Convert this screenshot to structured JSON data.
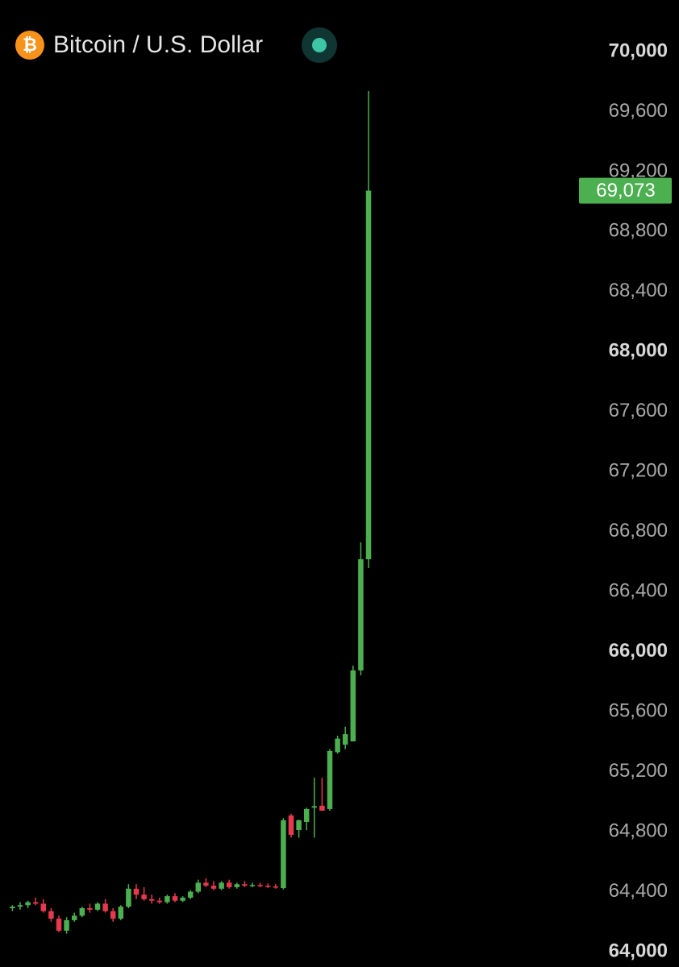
{
  "chart_data": {
    "type": "candlestick",
    "title": "Bitcoin / U.S. Dollar",
    "symbol_icon": "₿",
    "up_color": "#4caf50",
    "down_color": "#e5394d",
    "open": [
      64290,
      64300,
      64310,
      64330,
      64320,
      64270,
      64220,
      64140,
      64210,
      64240,
      64290,
      64280,
      64320,
      64270,
      64220,
      64300,
      64420,
      64380,
      64350,
      64340,
      64330,
      64370,
      64340,
      64360,
      64400,
      64460,
      64440,
      64420,
      64460,
      64430,
      64450,
      64440,
      64445,
      64440,
      64435,
      64424,
      64908,
      64811,
      64865,
      64960,
      64973,
      64951,
      65330,
      65380,
      65402,
      65875,
      66616
    ],
    "high": [
      64310,
      64330,
      64340,
      64360,
      64350,
      64290,
      64240,
      64230,
      64260,
      64300,
      64320,
      64330,
      64350,
      64290,
      64310,
      64450,
      64450,
      64430,
      64380,
      64360,
      64380,
      64390,
      64370,
      64410,
      64480,
      64490,
      64470,
      64470,
      64480,
      64460,
      64470,
      64460,
      64460,
      64455,
      64450,
      64890,
      64920,
      64880,
      64960,
      65160,
      65160,
      65350,
      65440,
      65500,
      65907,
      66729,
      69737
    ],
    "low": [
      64270,
      64280,
      64290,
      64310,
      64260,
      64200,
      64130,
      64120,
      64200,
      64230,
      64260,
      64270,
      64260,
      64200,
      64210,
      64290,
      64350,
      64340,
      64320,
      64320,
      64320,
      64330,
      64330,
      64350,
      64390,
      64430,
      64410,
      64410,
      64420,
      64420,
      64430,
      64430,
      64430,
      64425,
      64420,
      64415,
      64760,
      64760,
      64810,
      64760,
      64940,
      64940,
      65320,
      65350,
      65402,
      65842,
      66557
    ],
    "close": [
      64300,
      64310,
      64330,
      64320,
      64270,
      64220,
      64140,
      64210,
      64240,
      64290,
      64280,
      64320,
      64270,
      64220,
      64300,
      64420,
      64380,
      64350,
      64340,
      64330,
      64370,
      64340,
      64360,
      64400,
      64460,
      64440,
      64420,
      64460,
      64430,
      64450,
      64440,
      64445,
      64440,
      64435,
      64430,
      64876,
      64779,
      64876,
      64951,
      64970,
      64940,
      65338,
      65420,
      65450,
      65875,
      66616,
      69073
    ],
    "last_price": {
      "value": 69073,
      "label": "69,073"
    },
    "ylim": [
      64000,
      70000
    ],
    "yticks": [
      {
        "value": 64000,
        "label": "64,000"
      },
      {
        "value": 64400,
        "label": "64,400"
      },
      {
        "value": 64800,
        "label": "64,800"
      },
      {
        "value": 65200,
        "label": "65,200"
      },
      {
        "value": 65600,
        "label": "65,600"
      },
      {
        "value": 66000,
        "label": "66,000"
      },
      {
        "value": 66400,
        "label": "66,400"
      },
      {
        "value": 66800,
        "label": "66,800"
      },
      {
        "value": 67200,
        "label": "67,200"
      },
      {
        "value": 67600,
        "label": "67,600"
      },
      {
        "value": 68000,
        "label": "68,000"
      },
      {
        "value": 68400,
        "label": "68,400"
      },
      {
        "value": 68800,
        "label": "68,800"
      },
      {
        "value": 69200,
        "label": "69,200"
      },
      {
        "value": 69600,
        "label": "69,600"
      },
      {
        "value": 70000,
        "label": "70,000"
      }
    ],
    "bold_ticks": [
      64000,
      66000,
      68000,
      70000
    ]
  }
}
